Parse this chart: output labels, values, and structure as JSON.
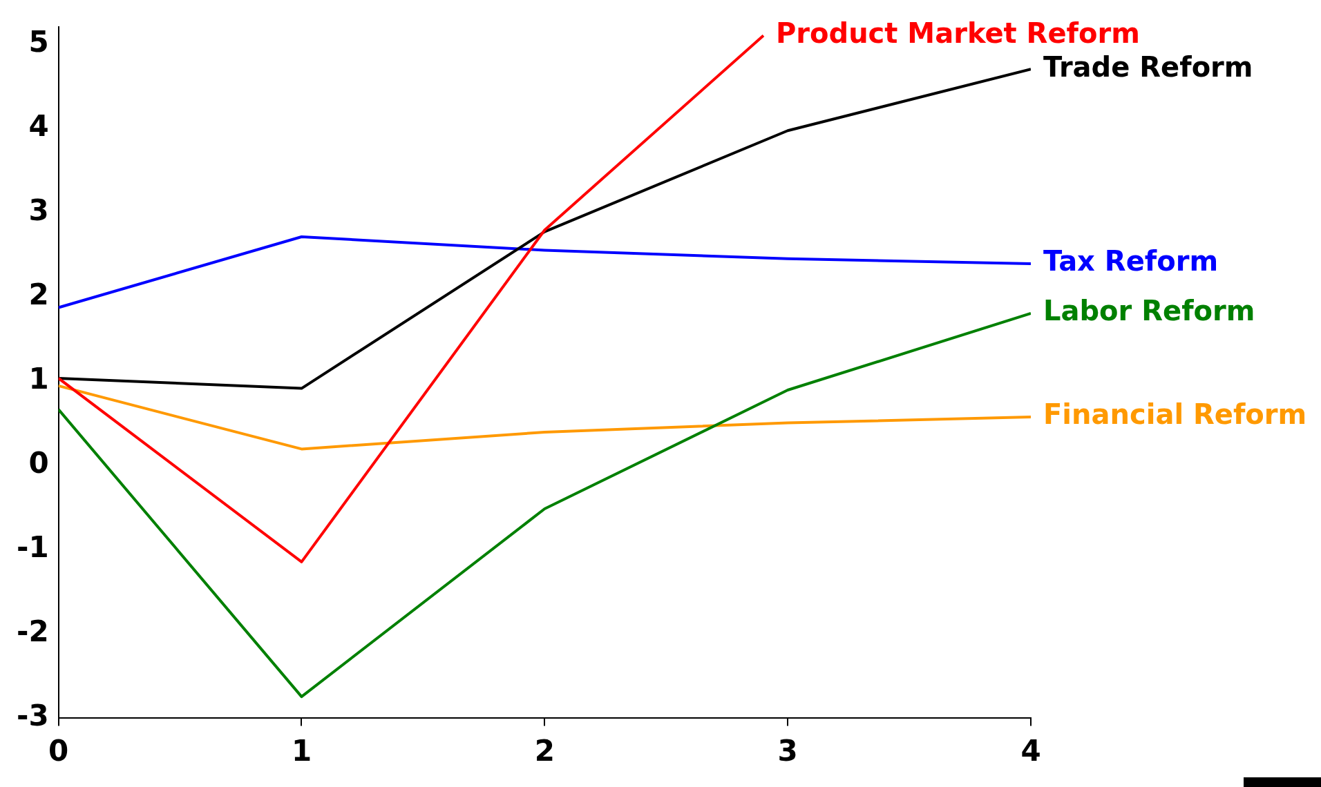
{
  "chart_data": {
    "type": "line",
    "x": [
      0,
      1,
      2,
      3,
      4
    ],
    "xlim": [
      0,
      4
    ],
    "xticks": [
      0,
      1,
      2,
      3,
      4
    ],
    "ylim": [
      -3,
      5.2
    ],
    "yticks": [
      -3,
      -2,
      -1,
      0,
      1,
      2,
      3,
      4,
      5
    ],
    "legend": false,
    "marker": "none",
    "line_style": "solid",
    "series": [
      {
        "name": "Product Market Reform",
        "color": "#ff0000",
        "x": [
          0,
          1,
          2,
          2.9
        ],
        "values": [
          1.03,
          -1.15,
          2.79,
          5.1
        ]
      },
      {
        "name": "Trade Reform",
        "color": "#000000",
        "values": [
          1.03,
          0.91,
          2.77,
          3.97,
          4.7
        ]
      },
      {
        "name": "Tax Reform",
        "color": "#0000ff",
        "values": [
          1.87,
          2.71,
          2.55,
          2.45,
          2.39
        ]
      },
      {
        "name": "Labor Reform",
        "color": "#008000",
        "values": [
          0.66,
          -2.75,
          -0.52,
          0.89,
          1.8
        ]
      },
      {
        "name": "Financial Reform",
        "color": "#ff9900",
        "values": [
          0.94,
          0.19,
          0.39,
          0.5,
          0.57
        ]
      }
    ]
  }
}
